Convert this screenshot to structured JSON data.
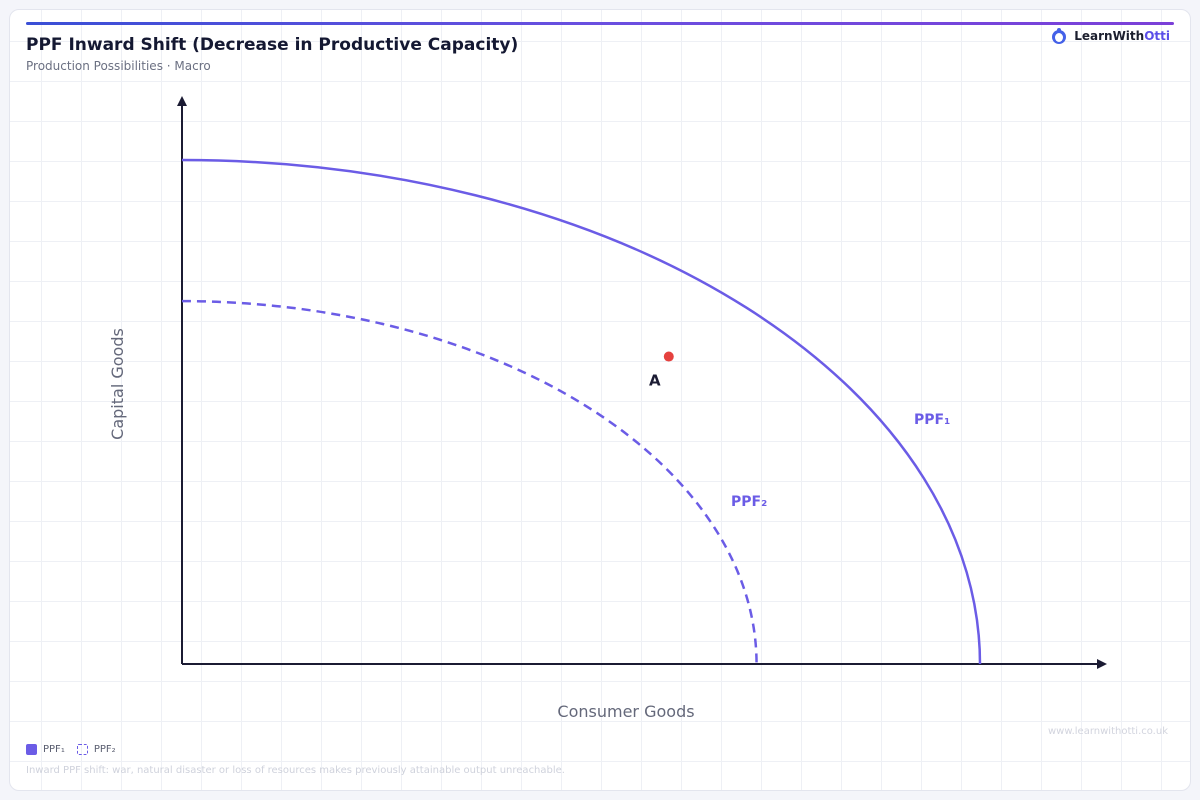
{
  "header": {
    "title": "PPF Inward Shift (Decrease in Productive Capacity)",
    "subtitle": "Production Possibilities · Macro"
  },
  "brand": {
    "name_main": "LearnWith",
    "name_accent": "Otti",
    "icon": "otter-logo-icon"
  },
  "diagram": {
    "x_axis_label": "Consumer Goods",
    "y_axis_label": "Capital Goods",
    "curves": [
      {
        "id": "ppf1",
        "label": "PPF₁",
        "style": "solid",
        "x_intercept": 1.0,
        "y_intercept": 1.0
      },
      {
        "id": "ppf2",
        "label": "PPF₂",
        "style": "dashed",
        "x_intercept": 0.72,
        "y_intercept": 0.72
      }
    ],
    "point": {
      "label": "A",
      "color": "#e5413e",
      "x": 0.61,
      "y": 0.61
    },
    "colors": {
      "curve": "#6b5ce6",
      "axis": "#1b1b33",
      "label": "#64687a"
    }
  },
  "legend": {
    "items": [
      {
        "label": "PPF₁",
        "style": "solid"
      },
      {
        "label": "PPF₂",
        "style": "dashed"
      }
    ]
  },
  "caption": "Inward PPF shift: war, natural disaster or loss of resources makes previously attainable output unreachable.",
  "footer": {
    "url": "www.learnwithotti.co.uk"
  }
}
